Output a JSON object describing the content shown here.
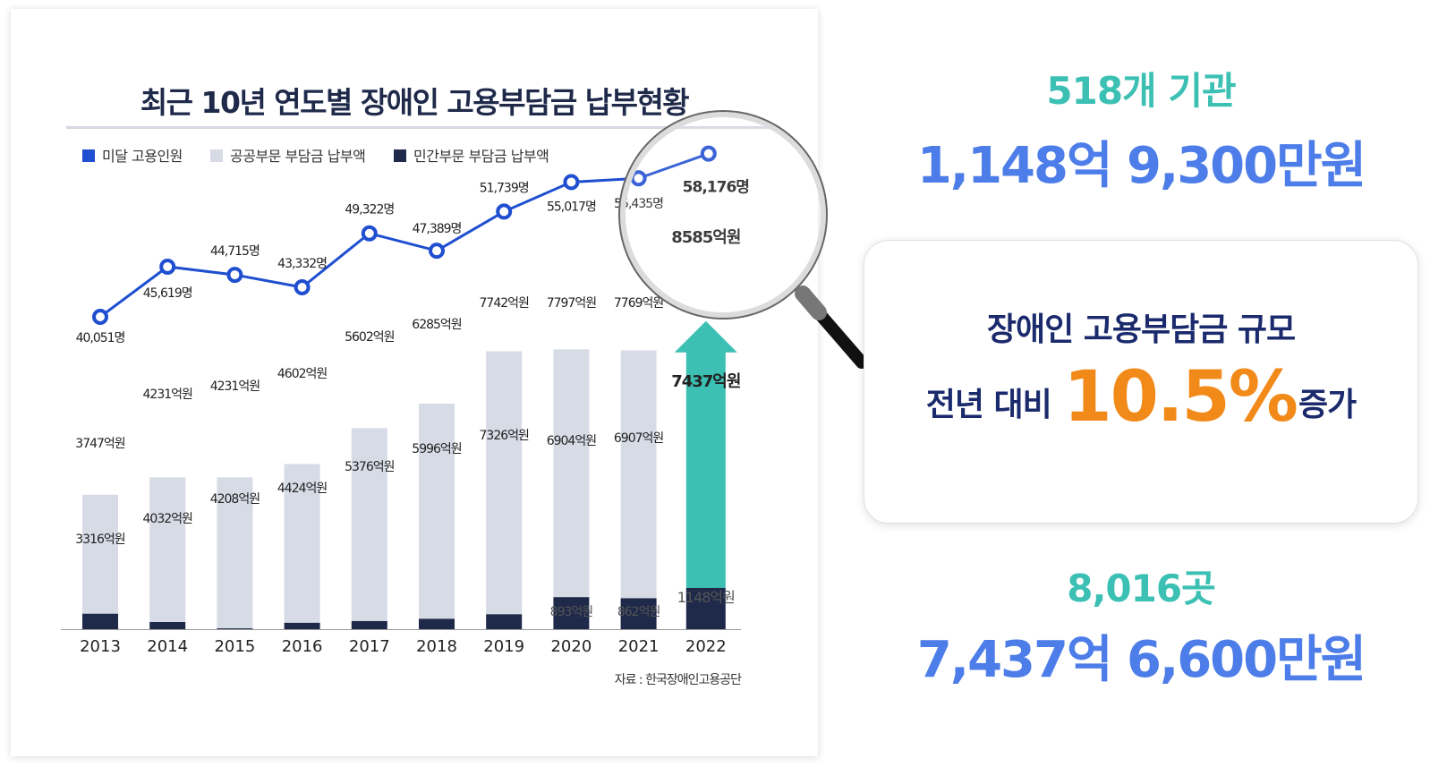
{
  "chart_data": {
    "type": "bar",
    "title": "최근 10년 연도별 장애인 고용부담금 납부현황",
    "source": "자료 : 한국장애인고용공단",
    "legend": [
      {
        "label": "미달 고용인원",
        "color": "#1f4fd0"
      },
      {
        "label": "공공부문 부담금 납부액",
        "color": "#d7dbe6"
      },
      {
        "label": "민간부문 부담금 납부액",
        "color": "#1f2a4a"
      }
    ],
    "legend_position": "top-left",
    "categories": [
      "2013",
      "2014",
      "2015",
      "2016",
      "2017",
      "2018",
      "2019",
      "2020",
      "2021",
      "2022"
    ],
    "bar_totals": [
      3747,
      4231,
      4231,
      4602,
      5602,
      6285,
      7742,
      7797,
      7769,
      8585
    ],
    "bar_totals_labels": [
      "3747억원",
      "4231억원",
      "4231억원",
      "4602억원",
      "5602억원",
      "6285억원",
      "7742억원",
      "7797억원",
      "7769억원",
      "8585억원"
    ],
    "private_values_labels": [
      "3316억원",
      "4032억원",
      "4208억원",
      "4424억원",
      "5376억원",
      "5996억원",
      "7326억원",
      "6904억원",
      "6907억원",
      "7437억원"
    ],
    "public_values": [
      431,
      199,
      23,
      178,
      226,
      289,
      416,
      893,
      862,
      1148
    ],
    "public_values_labels": [
      "",
      "",
      "",
      "",
      "",
      "",
      "",
      "893억원",
      "862억원",
      "1148억원"
    ],
    "line_series": {
      "name": "미달 고용인원",
      "values": [
        40051,
        45619,
        44715,
        43332,
        49322,
        47389,
        51739,
        55017,
        55435,
        58176
      ],
      "labels": [
        "40,051명",
        "45,619명",
        "44,715명",
        "43,332명",
        "49,322명",
        "47,389명",
        "51,739명",
        "55,017명",
        "55,435명",
        "58,176명"
      ]
    },
    "highlight_color": "#3cc0b3",
    "bar_color": "#d7dbe6",
    "dark_color": "#1f2a4a",
    "line_color": "#1f4fd0"
  },
  "right": {
    "top_small": "518개 기관",
    "top_big": "1,148억 9,300만원",
    "callout_line1": "장애인 고용부담금 규모",
    "callout_prefix": "전년 대비",
    "callout_percent": "10.5%",
    "callout_suffix": "증가",
    "bottom_small": "8,016곳",
    "bottom_big": "7,437억 6,600만원"
  }
}
